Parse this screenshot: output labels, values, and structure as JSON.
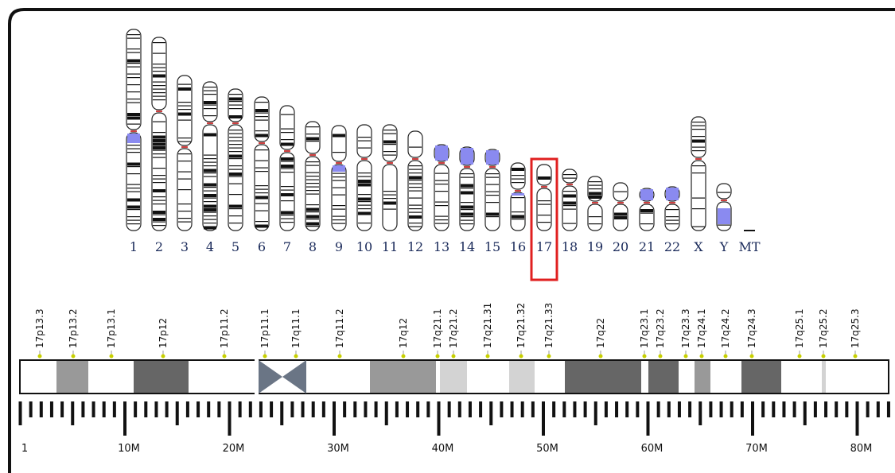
{
  "karyotype": {
    "labels": [
      "1",
      "2",
      "3",
      "4",
      "5",
      "6",
      "7",
      "8",
      "9",
      "10",
      "11",
      "12",
      "13",
      "14",
      "15",
      "16",
      "17",
      "18",
      "19",
      "20",
      "21",
      "22",
      "X",
      "Y",
      "MT"
    ]
  },
  "ideogram": {
    "bands": [
      "17p13.3",
      "17p13.2",
      "17p13.1",
      "17p12",
      "17p11.2",
      "17p11.1",
      "17q11.1",
      "17q11.2",
      "17q12",
      "17q21.1",
      "17q21.2",
      "17q21.31",
      "17q21.32",
      "17q21.33",
      "17q22",
      "17q23.1",
      "17q23.2",
      "17q23.3",
      "17q24.1",
      "17q24.2",
      "17q24.3",
      "17q25.1",
      "17q25.2",
      "17q25.3"
    ]
  },
  "scale": {
    "labels": [
      "1",
      "10M",
      "20M",
      "30M",
      "40M",
      "50M",
      "60M",
      "70M",
      "80M"
    ]
  }
}
